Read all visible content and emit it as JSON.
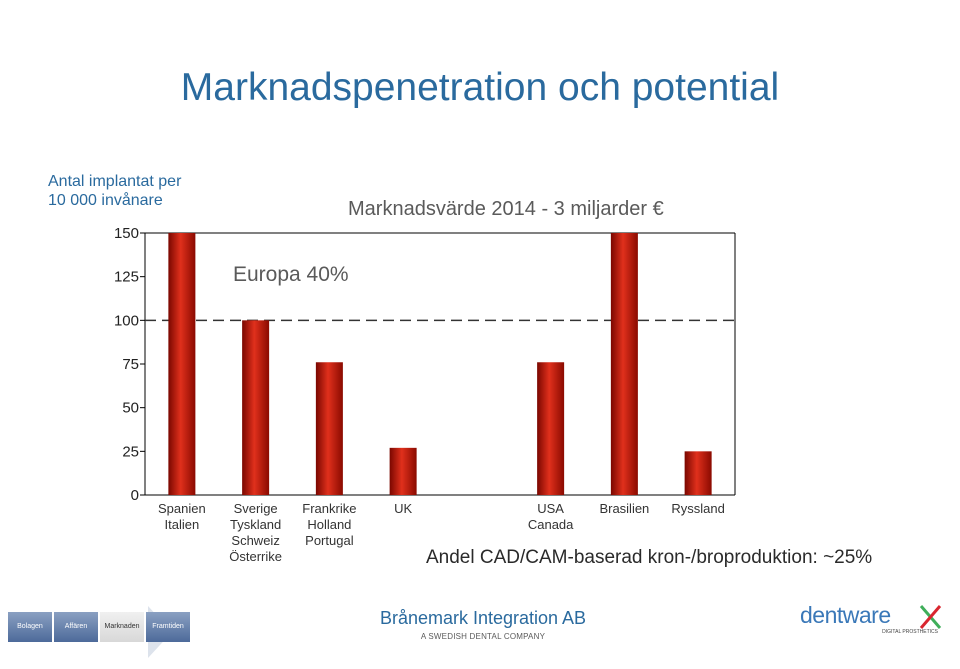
{
  "slide": {
    "title": "Marknadspenetration och potential",
    "ylabel_line1": "Antal implantat per",
    "ylabel_line2": "10 000 invånare",
    "annotation_europe": "Europa 40%",
    "annotation_cad": "Andel CAD/CAM-baserad kron-/broproduktion: ~25%"
  },
  "chart_data": {
    "type": "bar",
    "title": "Marknadsvärde 2014 - 3 miljarder €",
    "ylabel": "Antal implantat per 10 000 invånare",
    "ylim": [
      0,
      150
    ],
    "yticks": [
      0,
      25,
      50,
      75,
      100,
      125,
      150
    ],
    "reference_line": 100,
    "groups": [
      {
        "labels": [
          "Spanien",
          "Italien"
        ],
        "bars": [
          150
        ]
      },
      {
        "labels": [
          "Sverige",
          "Tyskland",
          "Schweiz",
          "Österrike"
        ],
        "bars": [
          100
        ]
      },
      {
        "labels": [
          "Frankrike",
          "Holland",
          "Portugal"
        ],
        "bars": [
          76
        ]
      },
      {
        "labels": [
          "UK"
        ],
        "bars": [
          27
        ]
      },
      {
        "labels": [
          ""
        ],
        "bars": [
          null
        ]
      },
      {
        "labels": [
          "USA",
          "Canada"
        ],
        "bars": [
          76
        ]
      },
      {
        "labels": [
          "Brasilien"
        ],
        "bars": [
          150
        ]
      },
      {
        "labels": [
          "Ryssland"
        ],
        "bars": [
          25
        ]
      }
    ],
    "colors": {
      "bar": "#c0160a",
      "bar_dark": "#7a0700",
      "bar_light": "#e0301c",
      "axis": "#000000",
      "reference": "#333333"
    }
  },
  "footer": {
    "nav": [
      "Bolagen",
      "Affären",
      "Marknaden",
      "Framtiden"
    ],
    "nav_active": "Marknaden",
    "company": "Brånemark Integration AB",
    "company_sub": "A SWEDISH DENTAL COMPANY",
    "logo": "dentware",
    "logo_sub": "DIGITAL PROSTHETICS"
  }
}
